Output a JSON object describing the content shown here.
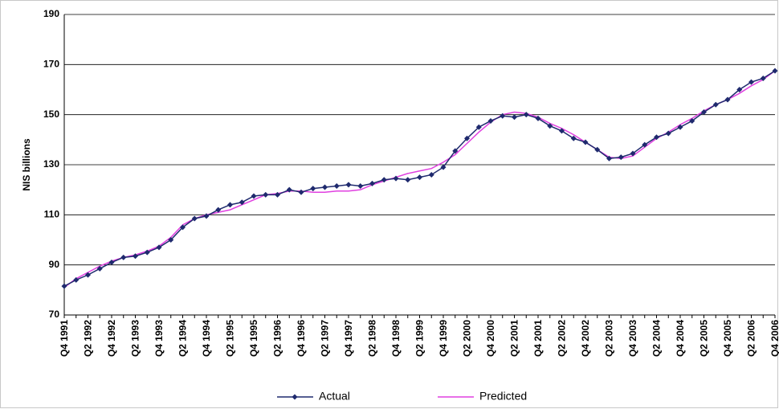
{
  "chart_data": {
    "type": "line",
    "y_label": "NIS billions",
    "categories": [
      "Q4 1991",
      null,
      "Q2 1992",
      null,
      "Q4 1992",
      null,
      "Q2 1993",
      null,
      "Q4 1993",
      null,
      "Q2 1994",
      null,
      "Q4 1994",
      null,
      "Q2 1995",
      null,
      "Q4 1995",
      null,
      "Q2 1996",
      null,
      "Q4 1996",
      null,
      "Q2 1997",
      null,
      "Q4 1997",
      null,
      "Q2 1998",
      null,
      "Q4 1998",
      null,
      "Q2 1999",
      null,
      "Q4 1999",
      null,
      "Q2 2000",
      null,
      "Q4 2000",
      null,
      "Q2 2001",
      null,
      "Q4 2001",
      null,
      "Q2 2002",
      null,
      "Q4 2002",
      null,
      "Q2 2003",
      null,
      "Q4 2003",
      null,
      "Q2 2004",
      null,
      "Q4 2004",
      null,
      "Q2 2005",
      null,
      "Q4 2005",
      null,
      "Q2 2006",
      null,
      "Q4 2006"
    ],
    "series": [
      {
        "name": "Actual",
        "color": "#1f2a6e",
        "marker": "diamond",
        "values": [
          81.5,
          84,
          86,
          88.5,
          91,
          93,
          93.5,
          95,
          97,
          100,
          105,
          108.5,
          109.5,
          112,
          114,
          115,
          117.5,
          118,
          118,
          120,
          119,
          120.5,
          121,
          121.5,
          122,
          121.5,
          122.5,
          124,
          124.5,
          124,
          125,
          126,
          129,
          135.5,
          140.5,
          145,
          147.5,
          149.5,
          149,
          150,
          148.5,
          145.5,
          143.5,
          140.5,
          139,
          136,
          132.5,
          133,
          134.5,
          138,
          141,
          142.5,
          145,
          147.5,
          151,
          154,
          156,
          160,
          163,
          164.5,
          167.5
        ]
      },
      {
        "name": "Predicted",
        "color": "#e040e0",
        "marker": "none",
        "values": [
          81,
          84.5,
          87,
          89.5,
          91.5,
          93,
          94,
          95.5,
          97.5,
          101,
          106,
          108.5,
          110,
          111,
          112,
          114,
          116,
          118,
          118.5,
          119.5,
          119.5,
          119,
          119,
          119.5,
          119.5,
          120,
          122,
          123.5,
          125,
          126.5,
          127.5,
          128.5,
          131,
          134,
          138.5,
          143,
          147,
          150,
          151,
          150.5,
          149,
          146.5,
          144.5,
          142,
          139,
          136,
          133,
          132.5,
          133.5,
          137,
          140.5,
          143,
          146,
          148.5,
          151.5,
          154,
          156,
          158.5,
          161.5,
          164,
          167.5
        ]
      }
    ],
    "ylim": [
      70,
      190
    ],
    "yticks": [
      70,
      90,
      110,
      130,
      150,
      170,
      190
    ],
    "grid": true,
    "legend": "bottom"
  }
}
